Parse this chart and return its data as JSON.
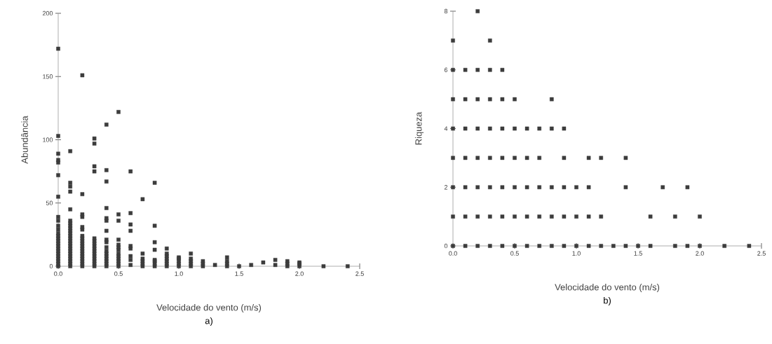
{
  "chart_data": [
    {
      "type": "scatter",
      "title": "a)",
      "xlabel": "Velocidade do vento (m/s)",
      "ylabel": "Abundância",
      "color": "#3c3c3c",
      "marker": "square",
      "grid": false,
      "x": [
        0,
        0,
        0,
        0,
        0,
        0,
        0,
        0,
        0,
        0,
        0,
        0,
        0,
        0,
        0,
        0,
        0,
        0,
        0,
        0,
        0,
        0,
        0,
        0,
        0,
        0.1,
        0.1,
        0.1,
        0.1,
        0.1,
        0.1,
        0.1,
        0.1,
        0.1,
        0.1,
        0.1,
        0.1,
        0.1,
        0.1,
        0.1,
        0.1,
        0.1,
        0.1,
        0.1,
        0.1,
        0.1,
        0.1,
        0.1,
        0.1,
        0.2,
        0.2,
        0.2,
        0.2,
        0.2,
        0.2,
        0.2,
        0.2,
        0.2,
        0.2,
        0.2,
        0.2,
        0.2,
        0.2,
        0.2,
        0.2,
        0.2,
        0.2,
        0.2,
        0.3,
        0.3,
        0.3,
        0.3,
        0.3,
        0.3,
        0.3,
        0.3,
        0.3,
        0.3,
        0.3,
        0.3,
        0.3,
        0.3,
        0.3,
        0.3,
        0.4,
        0.4,
        0.4,
        0.4,
        0.4,
        0.4,
        0.4,
        0.4,
        0.4,
        0.4,
        0.4,
        0.4,
        0.4,
        0.4,
        0.4,
        0.4,
        0.4,
        0.5,
        0.5,
        0.5,
        0.5,
        0.5,
        0.5,
        0.5,
        0.5,
        0.5,
        0.5,
        0.5,
        0.5,
        0.5,
        0.6,
        0.6,
        0.6,
        0.6,
        0.6,
        0.6,
        0.6,
        0.6,
        0.6,
        0.7,
        0.7,
        0.7,
        0.7,
        0.7,
        0.7,
        0.8,
        0.8,
        0.8,
        0.8,
        0.8,
        0.8,
        0.8,
        0.8,
        0.9,
        0.9,
        0.9,
        0.9,
        0.9,
        0.9,
        0.9,
        1.0,
        1.0,
        1.0,
        1.0,
        1.0,
        1.1,
        1.1,
        1.1,
        1.1,
        1.1,
        1.2,
        1.2,
        1.2,
        1.3,
        1.4,
        1.4,
        1.4,
        1.4,
        1.5,
        1.6,
        1.7,
        1.8,
        1.8,
        1.9,
        1.9,
        1.9,
        2.0,
        2.0,
        2.0,
        2.2,
        2.4
      ],
      "values": [
        0,
        2,
        4,
        6,
        8,
        10,
        12,
        14,
        16,
        18,
        20,
        22,
        24,
        26,
        29,
        32,
        36,
        39,
        55,
        72,
        82,
        84,
        89,
        103,
        172,
        0,
        2,
        4,
        6,
        8,
        10,
        12,
        14,
        16,
        18,
        20,
        22,
        24,
        26,
        28,
        30,
        32,
        34,
        36,
        45,
        59,
        63,
        66,
        91,
        0,
        2,
        4,
        6,
        8,
        10,
        12,
        14,
        16,
        18,
        20,
        22,
        24,
        29,
        31,
        39,
        41,
        57,
        151,
        0,
        2,
        4,
        6,
        8,
        10,
        12,
        14,
        16,
        18,
        20,
        22,
        75,
        79,
        97,
        101,
        0,
        2,
        4,
        6,
        8,
        10,
        12,
        15,
        19,
        21,
        28,
        36,
        38,
        46,
        67,
        76,
        112,
        0,
        2,
        4,
        6,
        8,
        10,
        13,
        15,
        17,
        21,
        36,
        41,
        122,
        1,
        5,
        8,
        14,
        16,
        28,
        33,
        42,
        75,
        0,
        2,
        4,
        6,
        10,
        53,
        0,
        2,
        4,
        5,
        13,
        19,
        32,
        66,
        0,
        2,
        4,
        6,
        8,
        10,
        14,
        0,
        2,
        4,
        6,
        7,
        0,
        2,
        4,
        6,
        10,
        0,
        2,
        4,
        1,
        0,
        2,
        4,
        7,
        0,
        1,
        3,
        1,
        5,
        0,
        2,
        4,
        0,
        2,
        3,
        0,
        0
      ],
      "xlim": [
        0,
        2.5
      ],
      "ylim": [
        0,
        200
      ],
      "xticks": [
        {
          "value": 0,
          "label": "0.0"
        },
        {
          "value": 0.5,
          "label": "0.5"
        },
        {
          "value": 1,
          "label": "1.0"
        },
        {
          "value": 1.5,
          "label": "1.5"
        },
        {
          "value": 2,
          "label": "2.0"
        },
        {
          "value": 2.5,
          "label": "2.5"
        }
      ],
      "yticks": [
        0,
        50,
        100,
        150,
        200
      ]
    },
    {
      "type": "scatter",
      "title": "b)",
      "xlabel": "Velocidade do vento (m/s)",
      "ylabel": "Riqueza",
      "color": "#3c3c3c",
      "marker": "square",
      "grid": false,
      "x": [
        0,
        0,
        0,
        0,
        0,
        0,
        0,
        0,
        0.1,
        0.1,
        0.1,
        0.1,
        0.1,
        0.1,
        0.1,
        0.2,
        0.2,
        0.2,
        0.2,
        0.2,
        0.2,
        0.2,
        0.2,
        0.3,
        0.3,
        0.3,
        0.3,
        0.3,
        0.3,
        0.3,
        0.3,
        0.4,
        0.4,
        0.4,
        0.4,
        0.4,
        0.4,
        0.4,
        0.5,
        0.5,
        0.5,
        0.5,
        0.5,
        0.5,
        0.6,
        0.6,
        0.6,
        0.6,
        0.6,
        0.7,
        0.7,
        0.7,
        0.7,
        0.7,
        0.8,
        0.8,
        0.8,
        0.8,
        0.8,
        0.9,
        0.9,
        0.9,
        0.9,
        0.9,
        1.0,
        1.0,
        1.0,
        1.1,
        1.1,
        1.1,
        1.1,
        1.2,
        1.2,
        1.2,
        1.3,
        1.4,
        1.4,
        1.4,
        1.5,
        1.6,
        1.6,
        1.7,
        1.8,
        1.8,
        1.9,
        1.9,
        2.0,
        2.0,
        2.2,
        2.4
      ],
      "values": [
        0,
        1,
        2,
        3,
        4,
        5,
        6,
        7,
        0,
        1,
        2,
        3,
        4,
        5,
        6,
        0,
        1,
        2,
        3,
        4,
        5,
        6,
        8,
        0,
        1,
        2,
        3,
        4,
        5,
        6,
        7,
        0,
        1,
        2,
        3,
        4,
        5,
        6,
        0,
        1,
        2,
        3,
        4,
        5,
        0,
        1,
        2,
        3,
        4,
        0,
        1,
        2,
        3,
        4,
        0,
        1,
        2,
        4,
        5,
        0,
        1,
        2,
        3,
        4,
        0,
        1,
        2,
        0,
        1,
        2,
        3,
        0,
        1,
        3,
        0,
        0,
        2,
        3,
        0,
        0,
        1,
        2,
        0,
        1,
        0,
        2,
        0,
        1,
        0,
        0
      ],
      "xlim": [
        0,
        2.5
      ],
      "ylim": [
        0,
        8
      ],
      "xticks": [
        {
          "value": 0,
          "label": "0.0"
        },
        {
          "value": 0.5,
          "label": "0.5"
        },
        {
          "value": 1,
          "label": "1.0"
        },
        {
          "value": 1.5,
          "label": "1.5"
        },
        {
          "value": 2,
          "label": "2.0"
        },
        {
          "value": 2.5,
          "label": "2.5"
        }
      ],
      "yticks": [
        0,
        2,
        4,
        6,
        8
      ]
    }
  ]
}
